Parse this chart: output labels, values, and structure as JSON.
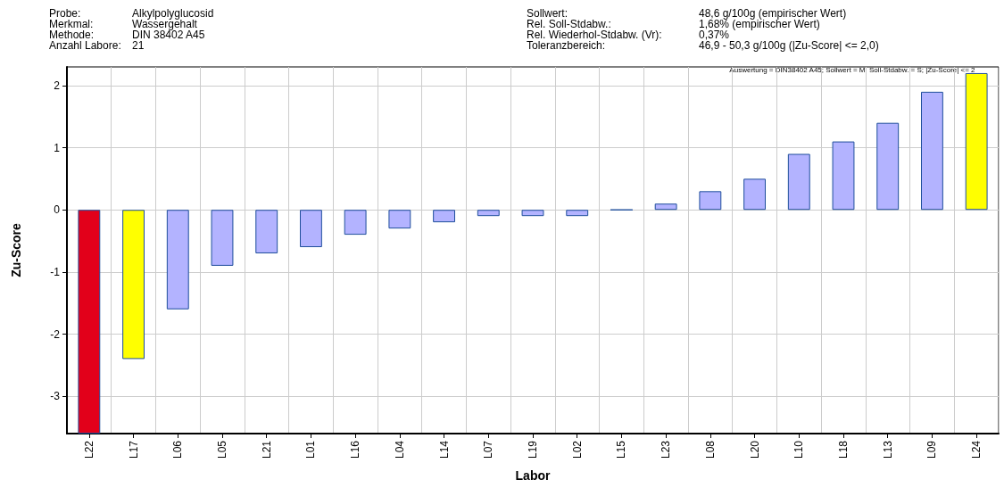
{
  "chart_data": {
    "type": "bar",
    "annotations": [
      "Probe:",
      "Alkylpolyglucosid",
      "Merkmal:",
      "Wassergehalt",
      "Methode:",
      "DIN 38402 A45",
      "Anzahl Labore:",
      "21",
      "Sollwert:",
      "48,6 g/100g (empirischer Wert)",
      "Rel. Soll-Stdabw.:",
      "1,68% (empirischer Wert)",
      "Rel. Wiederhol-Stdabw. (Vr):",
      "0,37%",
      "Toleranzbereich:",
      "46,9 - 50,3 g/100g (|Zu-Score| <= 2,0)",
      "Auswertung = DIN38402 A45; Sollwert = M; Soll-Stdabw. = S; |Zu-Score| <= 2"
    ],
    "xlabel": "Labor",
    "ylabel": "Zu-Score",
    "categories": [
      "L22",
      "L17",
      "L06",
      "L05",
      "L21",
      "L01",
      "L16",
      "L04",
      "L14",
      "L07",
      "L19",
      "L02",
      "L15",
      "L23",
      "L08",
      "L20",
      "L10",
      "L18",
      "L13",
      "L09",
      "L24"
    ],
    "values": [
      -3.6,
      -2.4,
      -1.6,
      -0.9,
      -0.7,
      -0.6,
      -0.4,
      -0.3,
      -0.2,
      -0.1,
      -0.1,
      -0.1,
      0.0,
      0.1,
      0.3,
      0.5,
      0.9,
      1.1,
      1.4,
      1.9,
      2.2
    ],
    "colors": [
      "#e2001a",
      "#ffff00",
      "#b3b3ff",
      "#b3b3ff",
      "#b3b3ff",
      "#b3b3ff",
      "#b3b3ff",
      "#b3b3ff",
      "#b3b3ff",
      "#b3b3ff",
      "#b3b3ff",
      "#b3b3ff",
      "#1f4e9c",
      "#b3b3ff",
      "#b3b3ff",
      "#b3b3ff",
      "#b3b3ff",
      "#b3b3ff",
      "#b3b3ff",
      "#b3b3ff",
      "#ffff00"
    ],
    "ylim": [
      -3.6,
      2.3
    ],
    "yticks": [
      -3,
      -2,
      -1,
      0,
      1,
      2
    ],
    "grid": true
  }
}
